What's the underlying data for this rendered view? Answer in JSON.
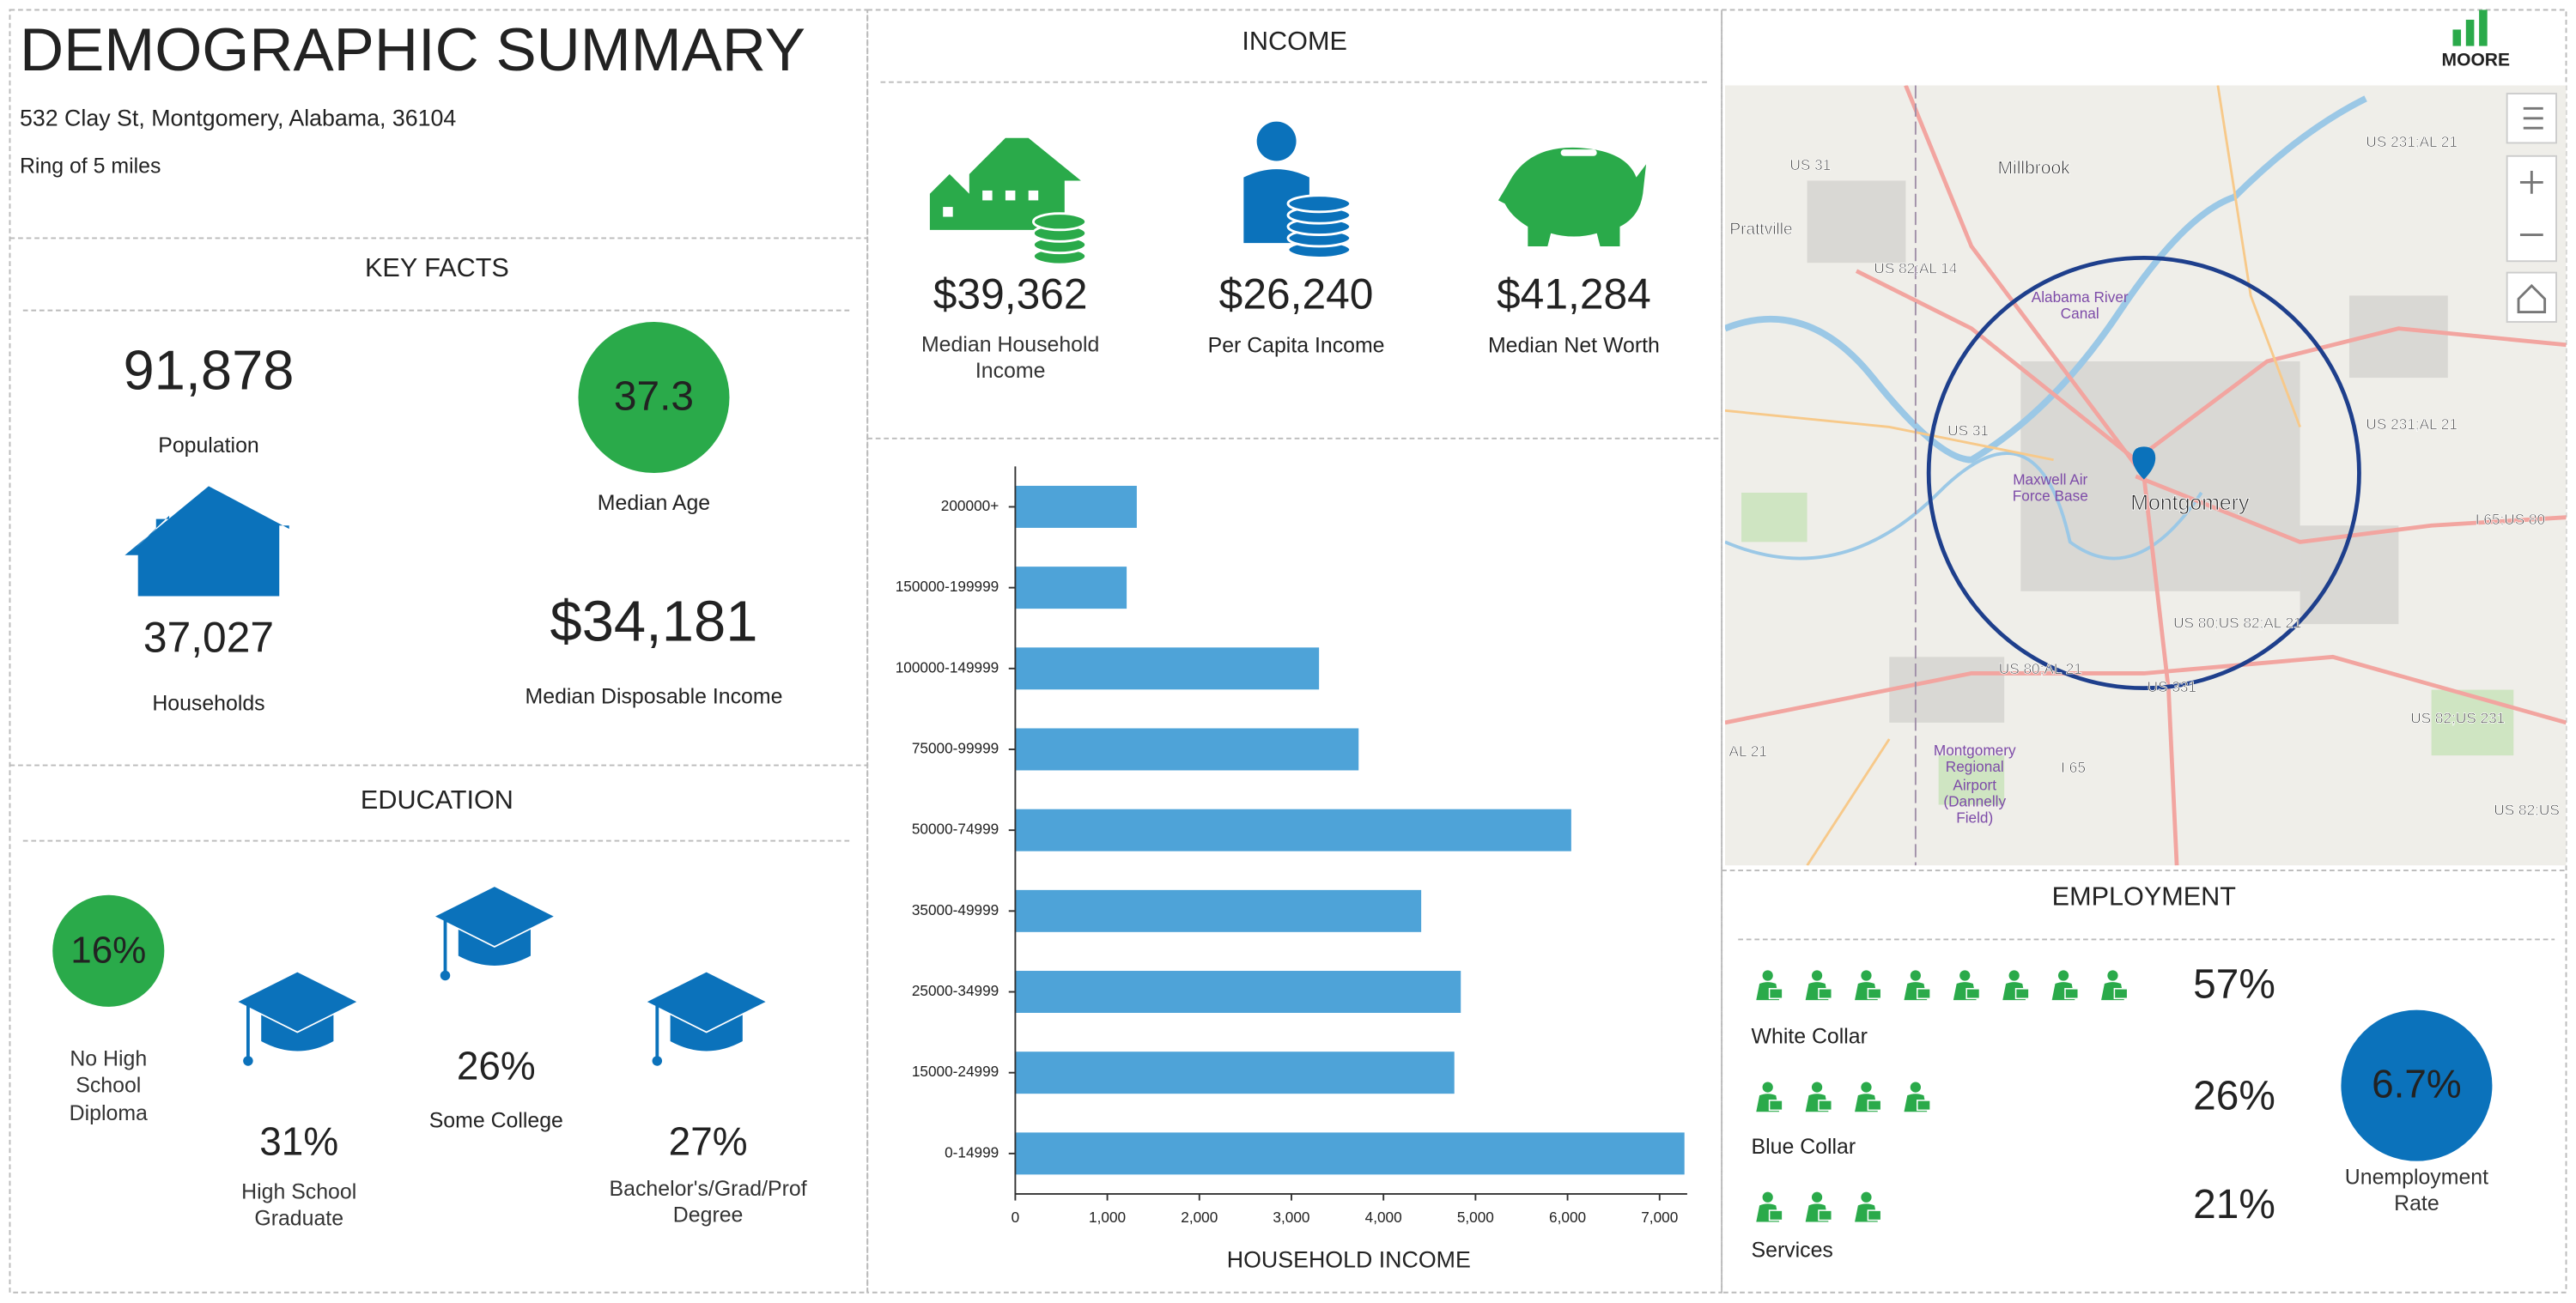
{
  "header": {
    "title": "DEMOGRAPHIC SUMMARY",
    "address": "532 Clay St, Montgomery, Alabama, 36104",
    "ring": "Ring of 5 miles"
  },
  "key_facts": {
    "title": "KEY FACTS",
    "population": {
      "value": "91,878",
      "label": "Population"
    },
    "median_age": {
      "value": "37.3",
      "label": "Median Age"
    },
    "households": {
      "value": "37,027",
      "label": "Households"
    },
    "median_disposable_income": {
      "value": "$34,181",
      "label": "Median Disposable Income"
    }
  },
  "education": {
    "title": "EDUCATION",
    "items": [
      {
        "value": "16%",
        "label": "No High School Diploma"
      },
      {
        "value": "31%",
        "label": "High School Graduate"
      },
      {
        "value": "26%",
        "label": "Some College"
      },
      {
        "value": "27%",
        "label": "Bachelor's/Grad/Prof Degree"
      }
    ]
  },
  "income": {
    "title": "INCOME",
    "items": [
      {
        "value": "$39,362",
        "label": "Median Household Income"
      },
      {
        "value": "$26,240",
        "label": "Per Capita Income"
      },
      {
        "value": "$41,284",
        "label": "Median Net Worth"
      }
    ]
  },
  "chart_data": {
    "type": "bar",
    "orientation": "horizontal",
    "x_label": "HOUSEHOLD INCOME",
    "categories": [
      "200000+",
      "150000-199999",
      "100000-149999",
      "75000-99999",
      "50000-74999",
      "35000-49999",
      "25000-34999",
      "15000-24999",
      "0-14999"
    ],
    "values": [
      1320,
      1210,
      3300,
      3730,
      6040,
      4410,
      4840,
      4770,
      7270
    ],
    "color": "#4ea3d8",
    "xlim": [
      0,
      7300
    ],
    "xticks": [
      0,
      {
        "value": 1000,
        "label": "1,000"
      },
      {
        "value": 2000,
        "label": "2,000"
      },
      {
        "value": 3000,
        "label": "3,000"
      },
      {
        "value": 4000,
        "label": "4,000"
      },
      {
        "value": 5000,
        "label": "5,000"
      },
      {
        "value": 6000,
        "label": "6,000"
      },
      {
        "value": 7000,
        "label": "7,000"
      }
    ]
  },
  "employment": {
    "title": "EMPLOYMENT",
    "items": [
      {
        "value": "57%",
        "label": "White Collar"
      },
      {
        "value": "26%",
        "label": "Blue Collar"
      },
      {
        "value": "21%",
        "label": "Services"
      }
    ],
    "unemployment": {
      "value": "6.7%",
      "label": "Unemployment Rate"
    }
  },
  "map": {
    "logo": "MOORE",
    "labels": [
      "US 31",
      "Millbrook",
      "US 231;AL 21",
      "Prattville",
      "US 82;AL 14",
      "Alabama River Canal",
      "US 31",
      "Maxwell Air Force Base",
      "Montgomery",
      "US 231;AL 21",
      "I 65;US 80",
      "US 80;US 82;AL 21",
      "US 80;AL 21",
      "US 331",
      "Montgomery Regional Airport (Dannelly Field)",
      "I 65",
      "US 82;US 231",
      "AL 21",
      "US 82;US"
    ]
  }
}
